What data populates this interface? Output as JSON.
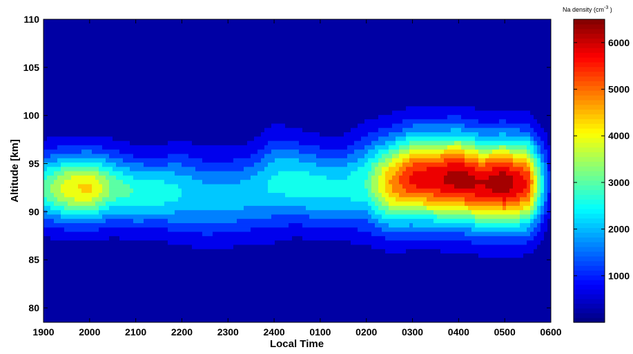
{
  "chart_data": {
    "type": "heatmap",
    "title": "",
    "xlabel": "Local Time",
    "ylabel": "Altitude [km]",
    "x_ticks": [
      "1900",
      "2000",
      "2100",
      "2200",
      "2300",
      "2400",
      "0100",
      "0200",
      "0300",
      "0400",
      "0500",
      "0600"
    ],
    "y_ticks": [
      80,
      85,
      90,
      95,
      100,
      105,
      110
    ],
    "ylim": [
      78.5,
      110
    ],
    "colorbar": {
      "label_prefix": "Na density (cm",
      "label_exponent": "-3",
      "label_suffix": " )",
      "ticks": [
        1000,
        2000,
        3000,
        4000,
        5000,
        6000
      ],
      "range": [
        0,
        6500
      ],
      "colormap": "jet",
      "colors": [
        "#00008f",
        "#0000ff",
        "#00ffff",
        "#ffff00",
        "#ff0000",
        "#800000"
      ]
    },
    "series": [
      {
        "time_hours_since_1900": [
          0,
          0.5,
          1,
          1.5,
          2,
          2.5,
          3,
          3.5,
          4,
          4.5,
          5,
          5.5,
          6,
          6.5,
          7,
          7.5,
          8,
          8.5,
          9,
          9.5,
          10,
          10.5,
          11
        ],
        "peak_altitude_km": [
          92.5,
          92.5,
          92.5,
          92.5,
          92,
          92,
          92,
          91.5,
          91.5,
          92,
          93,
          93,
          92.5,
          92.5,
          93,
          93,
          93.5,
          93.5,
          93.5,
          93,
          93,
          93,
          93
        ],
        "peak_density_cm3": [
          2800,
          3900,
          4200,
          3000,
          2600,
          2500,
          2200,
          2000,
          1900,
          2000,
          2300,
          2500,
          2400,
          2300,
          2700,
          4500,
          5600,
          5800,
          6200,
          5900,
          6300,
          5400,
          500
        ],
        "layer_width_km": [
          3.5,
          3.5,
          3.5,
          3.5,
          3.5,
          3.5,
          4,
          4,
          4,
          4,
          4.5,
          4,
          4,
          4,
          4.5,
          4.5,
          4.5,
          4.5,
          4.5,
          4.5,
          4.5,
          4.5,
          4
        ]
      }
    ]
  }
}
